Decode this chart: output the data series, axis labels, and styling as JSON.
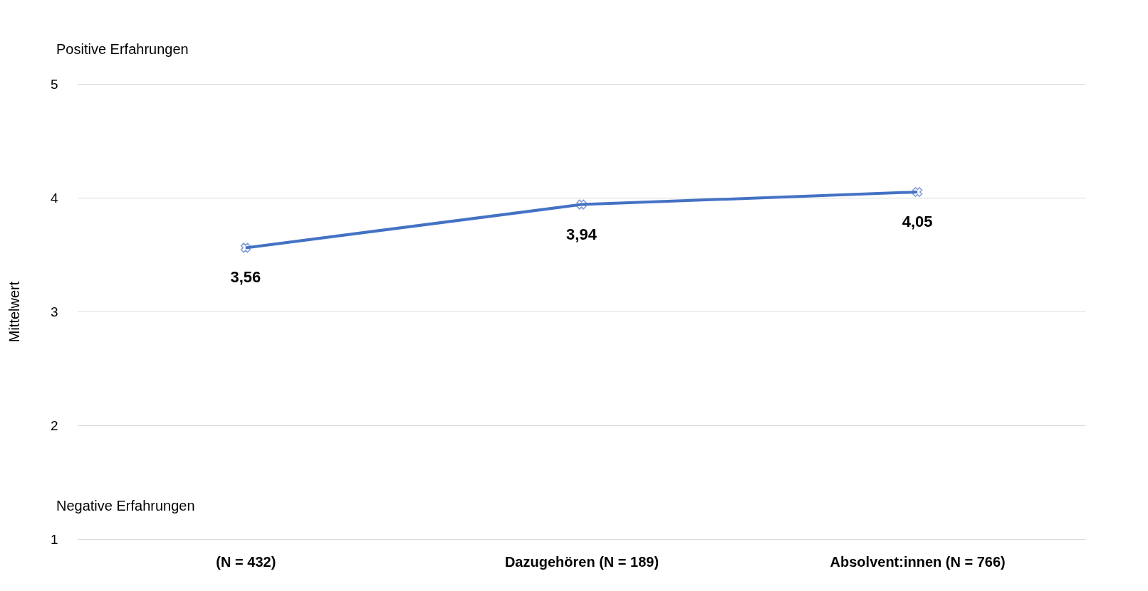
{
  "chart_data": {
    "type": "line",
    "ylabel": "Mittelwert",
    "categories": [
      "(N = 432)",
      "Dazugehören (N = 189)",
      "Absolvent:innen (N = 766)"
    ],
    "series": [
      {
        "color": "#4472c4",
        "values": [
          3.56,
          3.94,
          4.05
        ],
        "value_labels": [
          "3,56",
          "3,94",
          "4,05"
        ]
      }
    ],
    "ylim": [
      1,
      5
    ],
    "yticks": [
      1,
      2,
      3,
      4,
      5
    ],
    "grid": "y",
    "marker": "cross",
    "line_style": "solid",
    "annotations": [
      "Positive Erfahrungen",
      "Negative Erfahrungen"
    ]
  }
}
